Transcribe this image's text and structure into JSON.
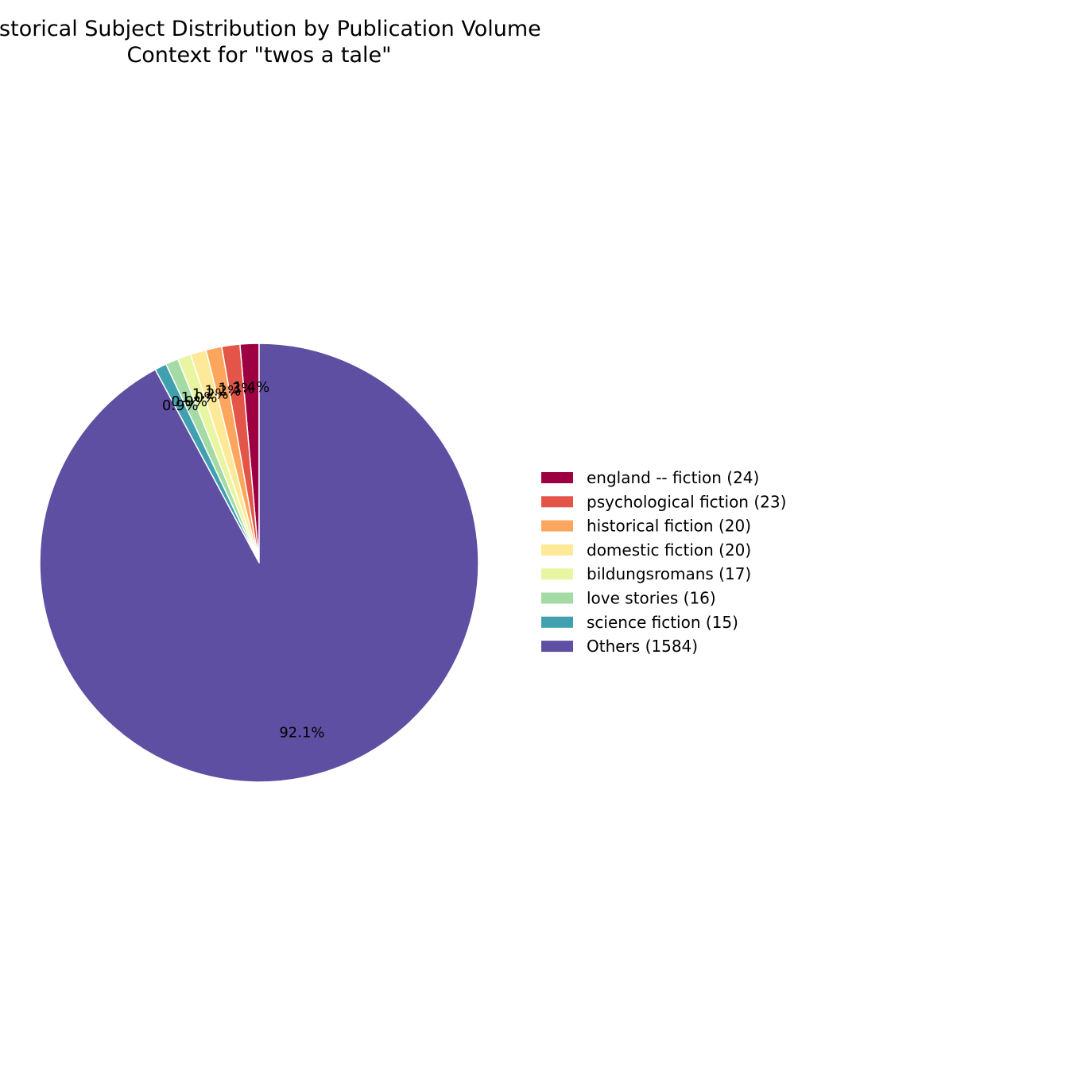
{
  "chart_data": {
    "type": "pie",
    "title": [
      "Historical Subject Distribution by Publication Volume",
      "Context for \"twos a tale\""
    ],
    "slices": [
      {
        "label": "england -- fiction",
        "value": 24,
        "pct_label": "1.4%",
        "color": "#9e0142"
      },
      {
        "label": "psychological fiction",
        "value": 23,
        "pct_label": "1.3%",
        "color": "#e45549"
      },
      {
        "label": "historical fiction",
        "value": 20,
        "pct_label": "1.2%",
        "color": "#fca55d"
      },
      {
        "label": "domestic fiction",
        "value": 20,
        "pct_label": "1.2%",
        "color": "#fee999"
      },
      {
        "label": "bildungsromans",
        "value": 17,
        "pct_label": "1.0%",
        "color": "#e9f6a1"
      },
      {
        "label": "love stories",
        "value": 16,
        "pct_label": "0.9%",
        "color": "#a4daa4"
      },
      {
        "label": "science fiction",
        "value": 15,
        "pct_label": "0.9%",
        "color": "#41a0b0"
      },
      {
        "label": "Others",
        "value": 1584,
        "pct_label": "92.1%",
        "color": "#5e4fa2"
      }
    ],
    "legend_position": "right",
    "start_angle_deg": 90,
    "direction": "counterclockwise"
  }
}
